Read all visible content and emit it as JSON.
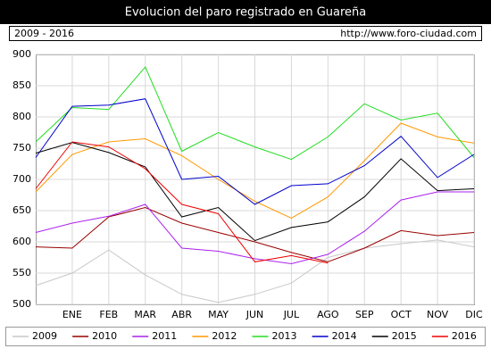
{
  "chart_data": {
    "type": "line",
    "title": "Evolucion del paro registrado en Guareña",
    "subtitle": "2009 - 2016",
    "source": "http://www.foro-ciudad.com",
    "categories": [
      null,
      "ENE",
      "FEB",
      "MAR",
      "ABR",
      "MAY",
      "JUN",
      "JUL",
      "AGO",
      "SEP",
      "OCT",
      "NOV",
      "DIC"
    ],
    "ylim": [
      500,
      900
    ],
    "yticks": [
      500,
      550,
      600,
      650,
      700,
      750,
      800,
      850,
      900
    ],
    "grid": true,
    "legend": "bottom",
    "series": [
      {
        "name": "2009",
        "color": "#c8c8c8",
        "values": [
          530,
          550,
          587,
          547,
          516,
          503,
          516,
          534,
          575,
          590,
          597,
          603,
          592
        ]
      },
      {
        "name": "2010",
        "color": "#990000",
        "values": [
          592,
          590,
          640,
          655,
          630,
          615,
          600,
          583,
          568,
          590,
          618,
          610,
          615
        ]
      },
      {
        "name": "2011",
        "color": "#aa22ee",
        "values": [
          615,
          630,
          641,
          660,
          590,
          585,
          573,
          565,
          580,
          617,
          667,
          680,
          680
        ]
      },
      {
        "name": "2012",
        "color": "#ff9900",
        "values": [
          680,
          740,
          760,
          765,
          738,
          700,
          665,
          638,
          672,
          730,
          790,
          768,
          758
        ]
      },
      {
        "name": "2013",
        "color": "#22dd22",
        "values": [
          760,
          815,
          812,
          880,
          745,
          775,
          752,
          732,
          768,
          821,
          795,
          806,
          735
        ]
      },
      {
        "name": "2014",
        "color": "#0000cc",
        "values": [
          735,
          817,
          819,
          829,
          700,
          705,
          660,
          690,
          693,
          722,
          769,
          703,
          740
        ]
      },
      {
        "name": "2015",
        "color": "#000000",
        "values": [
          742,
          759,
          743,
          720,
          640,
          655,
          602,
          623,
          632,
          672,
          733,
          682,
          685
        ]
      },
      {
        "name": "2016",
        "color": "#ee0000",
        "values": [
          685,
          760,
          752,
          717,
          660,
          645,
          568,
          578,
          566,
          null,
          null,
          null,
          null
        ]
      }
    ]
  }
}
